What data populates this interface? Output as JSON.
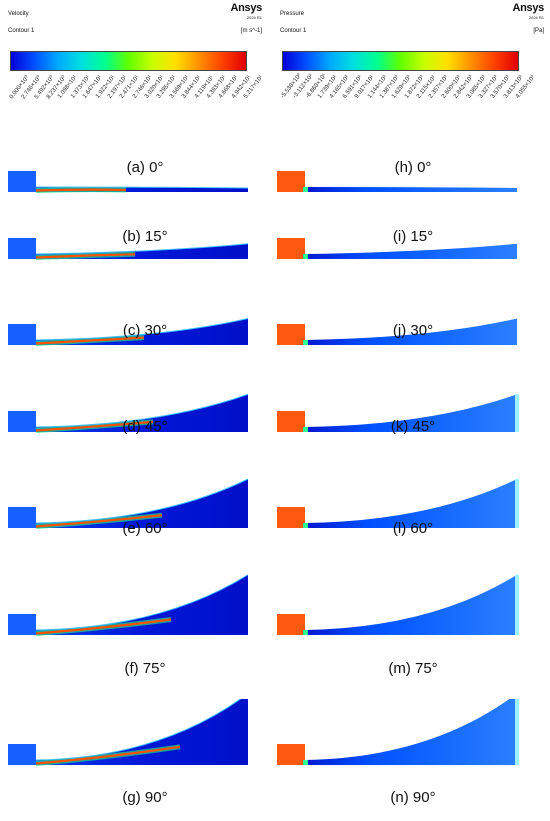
{
  "velocity_legend": {
    "variable": "Velocity",
    "contour": "Contour 1",
    "unit": "[m s^-1]",
    "brand": "Ansys",
    "version": "2024 R1",
    "ticks": [
      "0.000×10⁰",
      "2.746×10⁰",
      "5.492×10⁰",
      "8.237×10⁰",
      "1.098×10¹",
      "1.373×10¹",
      "1.647×10¹",
      "1.922×10¹",
      "2.197×10¹",
      "2.471×10¹",
      "2.746×10¹",
      "3.020×10¹",
      "3.295×10¹",
      "3.569×10¹",
      "3.844×10¹",
      "4.119×10¹",
      "4.393×10¹",
      "4.668×10¹",
      "4.942×10¹",
      "5.217×10¹"
    ]
  },
  "pressure_legend": {
    "variable": "Pressure",
    "contour": "Contour 1",
    "unit": "[Pa]",
    "brand": "Ansys",
    "version": "2024 R1",
    "ticks": [
      "-5.538×10²",
      "-3.112×10²",
      "-6.860×10¹",
      "1.739×10²",
      "4.165×10²",
      "6.591×10²",
      "9.017×10²",
      "1.144×10³",
      "1.387×10³",
      "1.629×10³",
      "1.872×10³",
      "2.115×10³",
      "2.357×10³",
      "2.600×10³",
      "2.842×10³",
      "3.085×10³",
      "3.327×10³",
      "3.570×10³",
      "3.813×10³",
      "4.055×10³"
    ]
  },
  "velocity_panels": [
    {
      "label": "(a) 0°",
      "angle": 0
    },
    {
      "label": "(b) 15°",
      "angle": 15
    },
    {
      "label": "(c) 30°",
      "angle": 30
    },
    {
      "label": "(d) 45°",
      "angle": 45
    },
    {
      "label": "(e) 60°",
      "angle": 60
    },
    {
      "label": "(f) 75°",
      "angle": 75
    },
    {
      "label": "(g) 90°",
      "angle": 90
    }
  ],
  "pressure_panels": [
    {
      "label": "(h) 0°",
      "angle": 0
    },
    {
      "label": "(i) 15°",
      "angle": 15
    },
    {
      "label": "(j) 30°",
      "angle": 30
    },
    {
      "label": "(k) 45°",
      "angle": 45
    },
    {
      "label": "(l) 60°",
      "angle": 60
    },
    {
      "label": "(m) 75°",
      "angle": 75
    },
    {
      "label": "(n) 90°",
      "angle": 90
    }
  ],
  "colormap": [
    "#0000d8",
    "#0050ff",
    "#00a8ff",
    "#00e0e0",
    "#00ff90",
    "#60ff00",
    "#c8ff00",
    "#ffe000",
    "#ff9000",
    "#ff4000",
    "#e00000"
  ]
}
